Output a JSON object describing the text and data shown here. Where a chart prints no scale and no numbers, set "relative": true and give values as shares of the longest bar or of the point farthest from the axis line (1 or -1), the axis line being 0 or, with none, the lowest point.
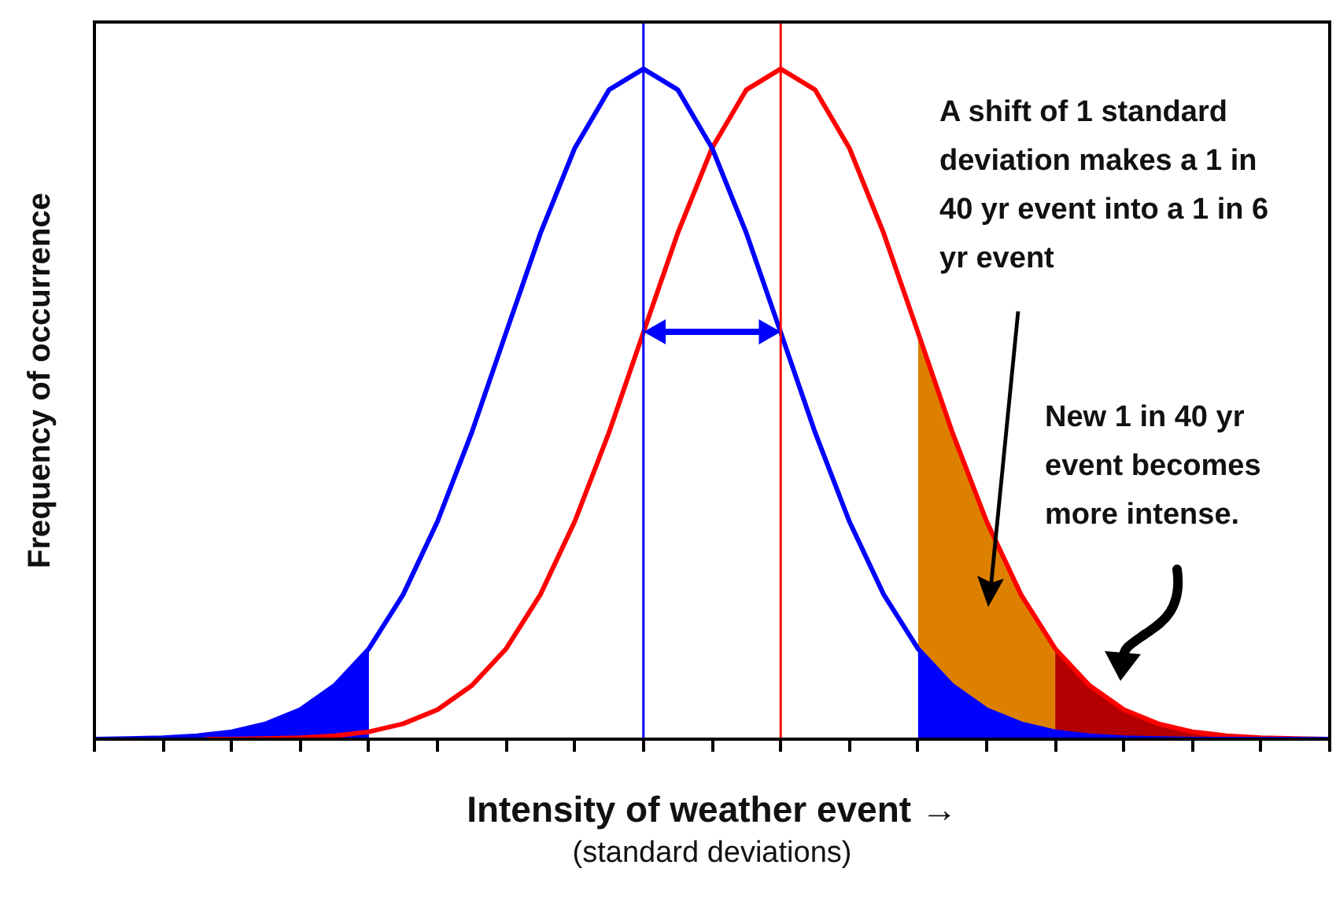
{
  "chart_data": {
    "type": "line",
    "relative": true,
    "xlabel": "Intensity of weather event →",
    "ylabel": "Frequency of occurrence",
    "annotations": [
      "A shift of 1 standard deviation makes a 1 in 40 yr event into a 1 in 6 yr event",
      "New 1 in 40 yr event becomes more intense.",
      "(standard deviations)"
    ],
    "categories": [
      null,
      null,
      null,
      null,
      null,
      null,
      null,
      null,
      null,
      null,
      null,
      null,
      null,
      null,
      null,
      null,
      null,
      null,
      null,
      null,
      null,
      null,
      null,
      null,
      null,
      null,
      null,
      null,
      null,
      null,
      null,
      null,
      null,
      null,
      null,
      null,
      null
    ],
    "grid": false,
    "legend": false,
    "marker": "none",
    "ref_lines": [
      {
        "axis": "x",
        "color": "#0000ff"
      },
      {
        "axis": "x",
        "color": "#ff0000"
      }
    ],
    "series": [
      {
        "color": "#0000ff",
        "values": [
          0,
          0.001,
          0.002,
          0.005,
          0.011,
          0.023,
          0.044,
          0.08,
          0.135,
          0.216,
          0.325,
          0.458,
          0.607,
          0.755,
          0.882,
          0.969,
          1,
          0.969,
          0.882,
          0.755,
          0.607,
          0.458,
          0.325,
          0.216,
          0.135,
          0.08,
          0.044,
          0.023,
          0.011,
          0.005,
          0.002,
          0.001,
          0,
          0,
          0,
          0,
          0
        ]
      },
      {
        "color": "#ff0000",
        "values": [
          null,
          null,
          0,
          0,
          0,
          0.001,
          0.002,
          0.005,
          0.011,
          0.023,
          0.044,
          0.08,
          0.135,
          0.216,
          0.325,
          0.458,
          0.607,
          0.755,
          0.882,
          0.969,
          1,
          0.969,
          0.882,
          0.755,
          0.607,
          0.458,
          0.325,
          0.216,
          0.135,
          0.08,
          0.044,
          0.023,
          0.011,
          0.005,
          0.002,
          0.001,
          0
        ]
      },
      {
        "type": "area",
        "color": "#0000ff",
        "values": [
          0,
          0.001,
          0.002,
          0.005,
          0.011,
          0.023,
          0.044,
          0.08,
          0.135,
          null,
          null,
          null,
          null,
          null,
          null,
          null,
          null,
          null,
          null,
          null,
          null,
          null,
          null,
          null,
          null,
          null,
          null,
          null,
          null,
          null,
          null,
          null,
          null,
          null,
          null,
          null,
          null
        ]
      },
      {
        "type": "area",
        "color": "#0000ff",
        "values": [
          null,
          null,
          null,
          null,
          null,
          null,
          null,
          null,
          null,
          null,
          null,
          null,
          null,
          null,
          null,
          null,
          null,
          null,
          null,
          null,
          null,
          null,
          null,
          null,
          0.135,
          0.08,
          0.044,
          0.023,
          0.011,
          0.005,
          0.002,
          0.001,
          0,
          0,
          0,
          0,
          0
        ]
      },
      {
        "type": "area",
        "color": "#dd8000",
        "values": [
          null,
          null,
          null,
          null,
          null,
          null,
          null,
          null,
          null,
          null,
          null,
          null,
          null,
          null,
          null,
          null,
          null,
          null,
          null,
          null,
          null,
          null,
          null,
          null,
          0.607,
          0.458,
          0.325,
          0.216,
          0.135,
          null,
          null,
          null,
          null,
          null,
          null,
          null,
          null
        ]
      },
      {
        "type": "area",
        "color": "#b40000",
        "values": [
          null,
          null,
          null,
          null,
          null,
          null,
          null,
          null,
          null,
          null,
          null,
          null,
          null,
          null,
          null,
          null,
          null,
          null,
          null,
          null,
          null,
          null,
          null,
          null,
          null,
          null,
          null,
          null,
          0.135,
          0.08,
          0.044,
          0.023,
          0.011,
          0.005,
          0.002,
          0.001,
          0
        ]
      }
    ]
  }
}
